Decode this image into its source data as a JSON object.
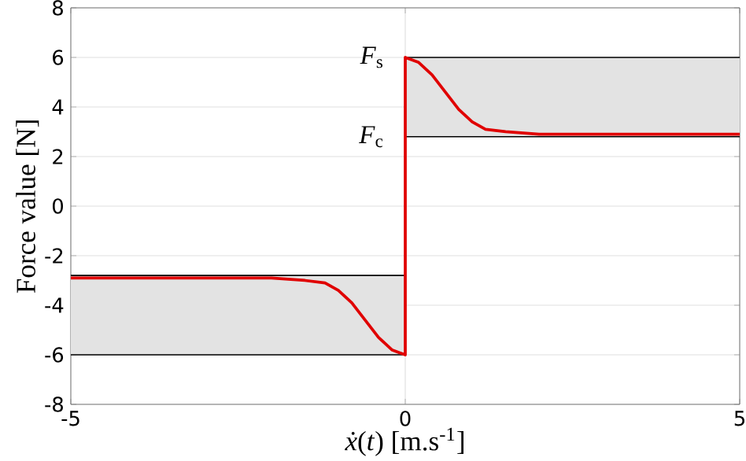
{
  "chart_data": {
    "type": "line",
    "xlabel": "*ẋ*(*t*) [m.s$^{-1}$]",
    "ylabel": "Force value [N]",
    "xlim": [
      -5,
      5
    ],
    "ylim": [
      -8,
      8
    ],
    "xticks": [
      -5,
      0,
      5
    ],
    "yticks": [
      -8,
      -6,
      -4,
      -2,
      0,
      2,
      4,
      6,
      8
    ],
    "grid": true,
    "marker": "none",
    "series": [
      {
        "color": "#000000",
        "x": [
          0,
          5
        ],
        "values": [
          6,
          6
        ],
        "lower": [
          2.8,
          2.8
        ],
        "upper": [
          6,
          6
        ]
      },
      {
        "color": "#000000",
        "x": [
          -5,
          0
        ],
        "values": [
          -6,
          -6
        ],
        "lower": [
          -6,
          -6
        ],
        "upper": [
          -2.8,
          -2.8
        ]
      },
      {
        "color": "#000000",
        "x": [
          0,
          5
        ],
        "values": [
          2.8,
          2.8
        ]
      },
      {
        "color": "#000000",
        "x": [
          -5,
          0
        ],
        "values": [
          -2.8,
          -2.8
        ]
      },
      {
        "color": "#e00000",
        "x": [
          -5,
          -2,
          -1.5,
          -1.2,
          -1,
          -0.8,
          -0.6,
          -0.4,
          -0.2,
          0,
          0,
          0.2,
          0.4,
          0.6,
          0.8,
          1,
          1.2,
          1.5,
          2,
          5
        ],
        "values": [
          -2.9,
          -2.9,
          -3,
          -3.1,
          -3.4,
          -3.9,
          -4.6,
          -5.3,
          -5.8,
          -6,
          6,
          5.8,
          5.3,
          4.6,
          3.9,
          3.4,
          3.1,
          3,
          2.9,
          2.9
        ]
      }
    ],
    "annotations": [
      {
        "text": "*F*$_{s}$",
        "x": 0,
        "y": 6
      },
      {
        "text": "*F*$_{c}$",
        "x": 0,
        "y": 2.8
      }
    ]
  }
}
